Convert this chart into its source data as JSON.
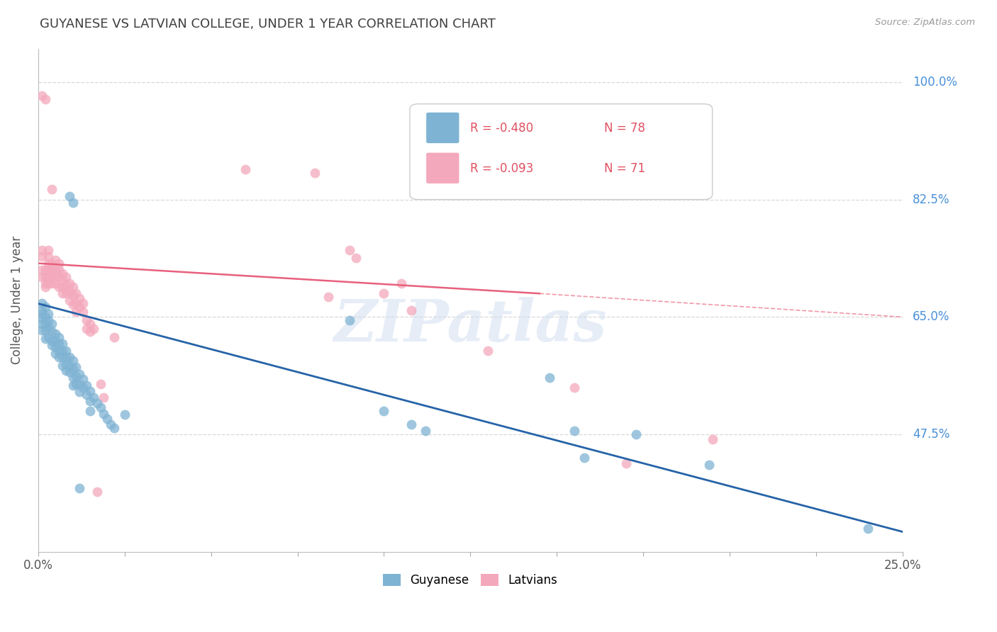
{
  "title": "GUYANESE VS LATVIAN COLLEGE, UNDER 1 YEAR CORRELATION CHART",
  "source": "Source: ZipAtlas.com",
  "ylabel": "College, Under 1 year",
  "xlim": [
    0.0,
    0.25
  ],
  "ylim": [
    0.3,
    1.05
  ],
  "yticks": [
    0.475,
    0.65,
    0.825,
    1.0
  ],
  "ytick_labels": [
    "47.5%",
    "65.0%",
    "82.5%",
    "100.0%"
  ],
  "blue_color": "#7fb3d3",
  "pink_color": "#f4a8bc",
  "blue_line_color": "#2563a8",
  "pink_line_color": "#e8607c",
  "blue_label": "Guyanese",
  "pink_label": "Latvians",
  "watermark": "ZIPatlas",
  "background_color": "#ffffff",
  "grid_color": "#d8d8d8",
  "right_label_color": "#4a90d9",
  "title_color": "#404040",
  "blue_trend": [
    0.0,
    0.67,
    0.25,
    0.33
  ],
  "pink_trend_solid": [
    0.0,
    0.73,
    0.145,
    0.685
  ],
  "pink_trend_dashed": [
    0.145,
    0.685,
    0.25,
    0.65
  ],
  "blue_scatter": [
    [
      0.001,
      0.67
    ],
    [
      0.001,
      0.66
    ],
    [
      0.001,
      0.655
    ],
    [
      0.001,
      0.648
    ],
    [
      0.001,
      0.64
    ],
    [
      0.001,
      0.63
    ],
    [
      0.002,
      0.665
    ],
    [
      0.002,
      0.65
    ],
    [
      0.002,
      0.64
    ],
    [
      0.002,
      0.63
    ],
    [
      0.002,
      0.618
    ],
    [
      0.003,
      0.655
    ],
    [
      0.003,
      0.645
    ],
    [
      0.003,
      0.635
    ],
    [
      0.003,
      0.62
    ],
    [
      0.004,
      0.64
    ],
    [
      0.004,
      0.628
    ],
    [
      0.004,
      0.615
    ],
    [
      0.004,
      0.608
    ],
    [
      0.005,
      0.625
    ],
    [
      0.005,
      0.615
    ],
    [
      0.005,
      0.605
    ],
    [
      0.005,
      0.595
    ],
    [
      0.006,
      0.62
    ],
    [
      0.006,
      0.61
    ],
    [
      0.006,
      0.6
    ],
    [
      0.006,
      0.59
    ],
    [
      0.007,
      0.61
    ],
    [
      0.007,
      0.6
    ],
    [
      0.007,
      0.59
    ],
    [
      0.007,
      0.578
    ],
    [
      0.008,
      0.6
    ],
    [
      0.008,
      0.59
    ],
    [
      0.008,
      0.58
    ],
    [
      0.008,
      0.57
    ],
    [
      0.009,
      0.59
    ],
    [
      0.009,
      0.578
    ],
    [
      0.009,
      0.568
    ],
    [
      0.01,
      0.585
    ],
    [
      0.01,
      0.572
    ],
    [
      0.01,
      0.56
    ],
    [
      0.01,
      0.548
    ],
    [
      0.011,
      0.575
    ],
    [
      0.011,
      0.562
    ],
    [
      0.011,
      0.55
    ],
    [
      0.012,
      0.565
    ],
    [
      0.012,
      0.55
    ],
    [
      0.012,
      0.538
    ],
    [
      0.013,
      0.558
    ],
    [
      0.013,
      0.545
    ],
    [
      0.014,
      0.548
    ],
    [
      0.014,
      0.534
    ],
    [
      0.015,
      0.54
    ],
    [
      0.015,
      0.525
    ],
    [
      0.015,
      0.51
    ],
    [
      0.016,
      0.53
    ],
    [
      0.017,
      0.522
    ],
    [
      0.018,
      0.515
    ],
    [
      0.019,
      0.506
    ],
    [
      0.02,
      0.498
    ],
    [
      0.021,
      0.49
    ],
    [
      0.022,
      0.485
    ],
    [
      0.025,
      0.505
    ],
    [
      0.012,
      0.395
    ],
    [
      0.009,
      0.83
    ],
    [
      0.01,
      0.82
    ],
    [
      0.09,
      0.645
    ],
    [
      0.1,
      0.51
    ],
    [
      0.108,
      0.49
    ],
    [
      0.112,
      0.48
    ],
    [
      0.148,
      0.56
    ],
    [
      0.155,
      0.48
    ],
    [
      0.158,
      0.44
    ],
    [
      0.173,
      0.475
    ],
    [
      0.194,
      0.43
    ],
    [
      0.24,
      0.335
    ]
  ],
  "pink_scatter": [
    [
      0.001,
      0.98
    ],
    [
      0.002,
      0.975
    ],
    [
      0.001,
      0.75
    ],
    [
      0.001,
      0.74
    ],
    [
      0.001,
      0.72
    ],
    [
      0.001,
      0.71
    ],
    [
      0.002,
      0.72
    ],
    [
      0.002,
      0.71
    ],
    [
      0.002,
      0.7
    ],
    [
      0.002,
      0.695
    ],
    [
      0.003,
      0.75
    ],
    [
      0.003,
      0.74
    ],
    [
      0.003,
      0.73
    ],
    [
      0.003,
      0.72
    ],
    [
      0.003,
      0.71
    ],
    [
      0.003,
      0.7
    ],
    [
      0.004,
      0.84
    ],
    [
      0.004,
      0.73
    ],
    [
      0.004,
      0.72
    ],
    [
      0.004,
      0.71
    ],
    [
      0.004,
      0.7
    ],
    [
      0.005,
      0.735
    ],
    [
      0.005,
      0.72
    ],
    [
      0.005,
      0.71
    ],
    [
      0.005,
      0.7
    ],
    [
      0.006,
      0.73
    ],
    [
      0.006,
      0.72
    ],
    [
      0.006,
      0.71
    ],
    [
      0.006,
      0.695
    ],
    [
      0.007,
      0.715
    ],
    [
      0.007,
      0.705
    ],
    [
      0.007,
      0.695
    ],
    [
      0.007,
      0.685
    ],
    [
      0.008,
      0.71
    ],
    [
      0.008,
      0.698
    ],
    [
      0.008,
      0.685
    ],
    [
      0.009,
      0.7
    ],
    [
      0.009,
      0.688
    ],
    [
      0.009,
      0.675
    ],
    [
      0.01,
      0.695
    ],
    [
      0.01,
      0.682
    ],
    [
      0.01,
      0.668
    ],
    [
      0.011,
      0.685
    ],
    [
      0.011,
      0.67
    ],
    [
      0.011,
      0.658
    ],
    [
      0.012,
      0.678
    ],
    [
      0.012,
      0.665
    ],
    [
      0.013,
      0.67
    ],
    [
      0.013,
      0.658
    ],
    [
      0.014,
      0.645
    ],
    [
      0.014,
      0.632
    ],
    [
      0.015,
      0.64
    ],
    [
      0.015,
      0.628
    ],
    [
      0.016,
      0.632
    ],
    [
      0.017,
      0.39
    ],
    [
      0.018,
      0.55
    ],
    [
      0.019,
      0.53
    ],
    [
      0.022,
      0.62
    ],
    [
      0.06,
      0.87
    ],
    [
      0.08,
      0.865
    ],
    [
      0.084,
      0.68
    ],
    [
      0.09,
      0.75
    ],
    [
      0.092,
      0.738
    ],
    [
      0.1,
      0.685
    ],
    [
      0.105,
      0.7
    ],
    [
      0.108,
      0.66
    ],
    [
      0.13,
      0.6
    ],
    [
      0.155,
      0.545
    ],
    [
      0.17,
      0.432
    ],
    [
      0.195,
      0.468
    ]
  ]
}
